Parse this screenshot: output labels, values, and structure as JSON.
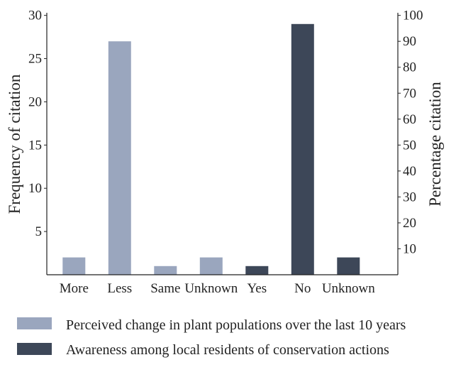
{
  "chart_data": {
    "type": "bar",
    "categories": [
      "More",
      "Less",
      "Same",
      "Unknown",
      "Yes",
      "No",
      "Unknown"
    ],
    "series": [
      {
        "name": "Perceived change in plant populations over the last 10 years",
        "color": "#9aa6be",
        "axis": "left",
        "values": [
          2,
          27,
          1,
          2,
          null,
          null,
          null
        ]
      },
      {
        "name": "Awareness among local residents of conservation actions",
        "color": "#3d4758",
        "axis": "left",
        "values": [
          null,
          null,
          null,
          null,
          1,
          29,
          2
        ]
      }
    ],
    "ylabel": "Frequency of citation",
    "ylabel_right": "Percentage citation",
    "ylim": [
      0,
      30.3
    ],
    "yticks": [
      5,
      10,
      15,
      20,
      25,
      30
    ],
    "ylim_right": [
      0,
      101
    ],
    "yticks_right": [
      10,
      20,
      30,
      40,
      50,
      60,
      70,
      80,
      90,
      100
    ],
    "grid": false,
    "legend_position": "bottom"
  }
}
